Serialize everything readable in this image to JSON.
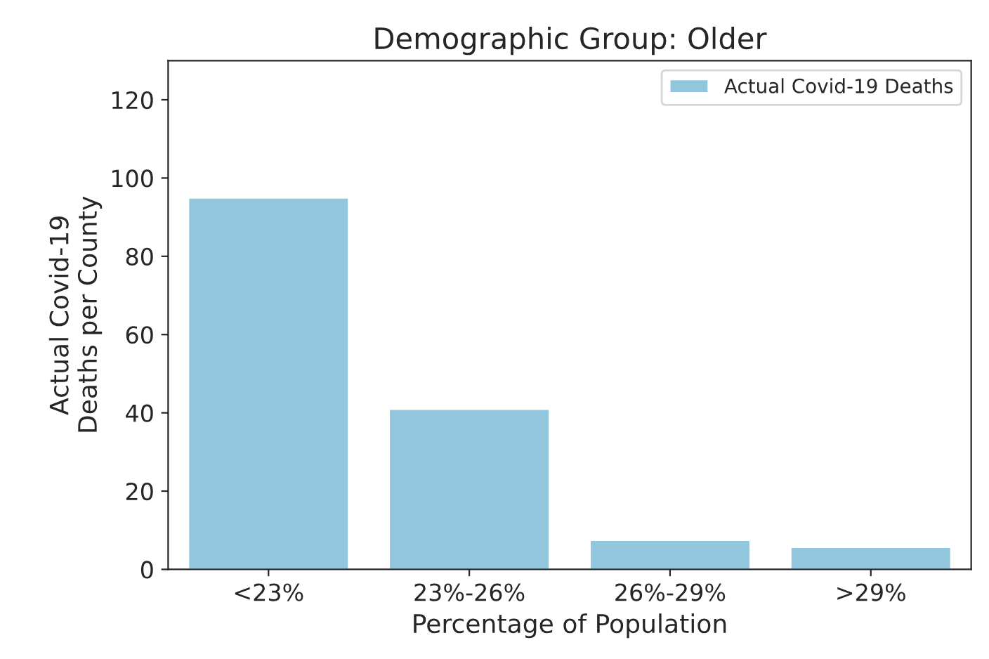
{
  "chart_data": {
    "type": "bar",
    "title": "Demographic Group: Older",
    "xlabel": "Percentage of Population",
    "ylabel": "Actual Covid-19\nDeaths per County",
    "categories": [
      "<23%",
      "23%-26%",
      "26%-29%",
      ">29%"
    ],
    "series": [
      {
        "name": "Actual Covid-19 Deaths",
        "color": "#92c6dd",
        "values": [
          95,
          41,
          7.5,
          5.7
        ]
      }
    ],
    "ylim": [
      0,
      130
    ],
    "yticks": [
      0,
      20,
      40,
      60,
      80,
      100,
      120
    ],
    "grid": false,
    "legend": "top right"
  }
}
